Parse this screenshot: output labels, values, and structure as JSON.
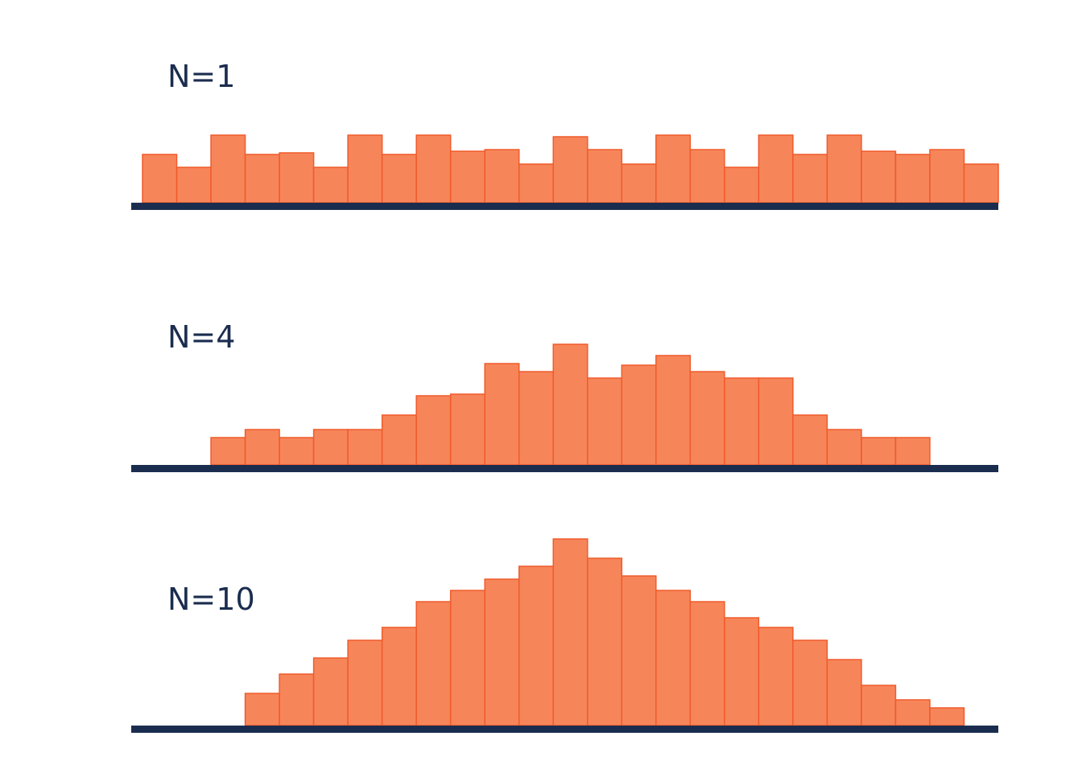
{
  "chart_data": [
    {
      "type": "bar",
      "title": "N=1",
      "bins": 25,
      "values": [
        60,
        44,
        84,
        60,
        62,
        44,
        84,
        60,
        84,
        64,
        66,
        48,
        82,
        66,
        48,
        84,
        66,
        44,
        84,
        60,
        84,
        64,
        60,
        66,
        48
      ],
      "ylim": [
        0,
        84
      ],
      "xlabel": "",
      "ylabel": "",
      "grid": false
    },
    {
      "type": "bar",
      "title": "N=4",
      "bins": 25,
      "values": [
        0,
        0,
        34,
        44,
        34,
        44,
        44,
        62,
        86,
        88,
        126,
        116,
        150,
        108,
        124,
        136,
        116,
        108,
        108,
        62,
        44,
        34,
        34,
        0,
        0
      ],
      "ylim": [
        0,
        150
      ],
      "xlabel": "",
      "ylabel": "",
      "grid": false
    },
    {
      "type": "bar",
      "title": "N=10",
      "bins": 25,
      "values": [
        0,
        0,
        0,
        40,
        64,
        84,
        106,
        122,
        154,
        168,
        182,
        198,
        232,
        208,
        186,
        168,
        154,
        134,
        122,
        106,
        82,
        50,
        32,
        22,
        0
      ],
      "ylim": [
        0,
        232
      ],
      "xlabel": "",
      "ylabel": "",
      "grid": false
    }
  ],
  "colors": {
    "bar_fill": "#f7855a",
    "bar_stroke": "#ef5b2b",
    "baseline": "#1b2d4f",
    "label": "#1b2d4f"
  }
}
